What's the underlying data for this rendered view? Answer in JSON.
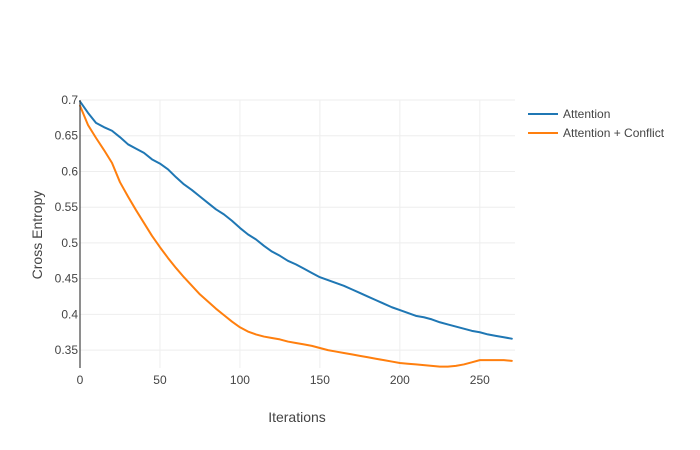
{
  "chart_data": {
    "type": "line",
    "xlabel": "Iterations",
    "ylabel": "Cross Entropy",
    "xlim": [
      0,
      272
    ],
    "ylim": [
      0.325,
      0.7
    ],
    "x_ticks": [
      0,
      50,
      100,
      150,
      200,
      250
    ],
    "x_tick_labels": [
      "0",
      "50",
      "100",
      "150",
      "200",
      "250"
    ],
    "y_ticks": [
      0.35,
      0.4,
      0.45,
      0.5,
      0.55,
      0.6,
      0.65,
      0.7
    ],
    "y_tick_labels": [
      "0.35",
      "0.4",
      "0.45",
      "0.5",
      "0.55",
      "0.6",
      "0.65",
      "0.7"
    ],
    "grid": true,
    "legend_position": "top-right, outside plot",
    "series": [
      {
        "name": "Attention",
        "color": "#1f77b4",
        "x": [
          0,
          5,
          10,
          15,
          20,
          25,
          30,
          35,
          40,
          45,
          50,
          55,
          60,
          65,
          70,
          75,
          80,
          85,
          90,
          95,
          100,
          105,
          110,
          115,
          120,
          125,
          130,
          135,
          140,
          145,
          150,
          155,
          160,
          165,
          170,
          175,
          180,
          185,
          190,
          195,
          200,
          205,
          210,
          215,
          220,
          225,
          230,
          235,
          240,
          245,
          250,
          255,
          260,
          265,
          270
        ],
        "y": [
          0.698,
          0.682,
          0.668,
          0.662,
          0.657,
          0.648,
          0.638,
          0.632,
          0.626,
          0.617,
          0.611,
          0.603,
          0.592,
          0.582,
          0.574,
          0.565,
          0.556,
          0.547,
          0.54,
          0.531,
          0.521,
          0.512,
          0.505,
          0.496,
          0.488,
          0.482,
          0.475,
          0.47,
          0.464,
          0.458,
          0.452,
          0.448,
          0.444,
          0.44,
          0.435,
          0.43,
          0.425,
          0.42,
          0.415,
          0.41,
          0.406,
          0.402,
          0.398,
          0.396,
          0.393,
          0.389,
          0.386,
          0.383,
          0.38,
          0.377,
          0.375,
          0.372,
          0.37,
          0.368,
          0.366
        ]
      },
      {
        "name": "Attention + Conflict",
        "color": "#ff7f0e",
        "x": [
          0,
          5,
          10,
          15,
          20,
          25,
          30,
          35,
          40,
          45,
          50,
          55,
          60,
          65,
          70,
          75,
          80,
          85,
          90,
          95,
          100,
          105,
          110,
          115,
          120,
          125,
          130,
          135,
          140,
          145,
          150,
          155,
          160,
          165,
          170,
          175,
          180,
          185,
          190,
          195,
          200,
          205,
          210,
          215,
          220,
          225,
          230,
          235,
          240,
          245,
          250,
          255,
          260,
          265,
          270
        ],
        "y": [
          0.692,
          0.665,
          0.647,
          0.63,
          0.612,
          0.585,
          0.565,
          0.546,
          0.528,
          0.51,
          0.494,
          0.479,
          0.465,
          0.452,
          0.44,
          0.428,
          0.418,
          0.408,
          0.399,
          0.39,
          0.382,
          0.376,
          0.372,
          0.369,
          0.367,
          0.365,
          0.362,
          0.36,
          0.358,
          0.356,
          0.353,
          0.35,
          0.348,
          0.346,
          0.344,
          0.342,
          0.34,
          0.338,
          0.336,
          0.334,
          0.332,
          0.331,
          0.33,
          0.329,
          0.328,
          0.327,
          0.327,
          0.328,
          0.33,
          0.333,
          0.336,
          0.336,
          0.336,
          0.336,
          0.335
        ]
      }
    ]
  }
}
